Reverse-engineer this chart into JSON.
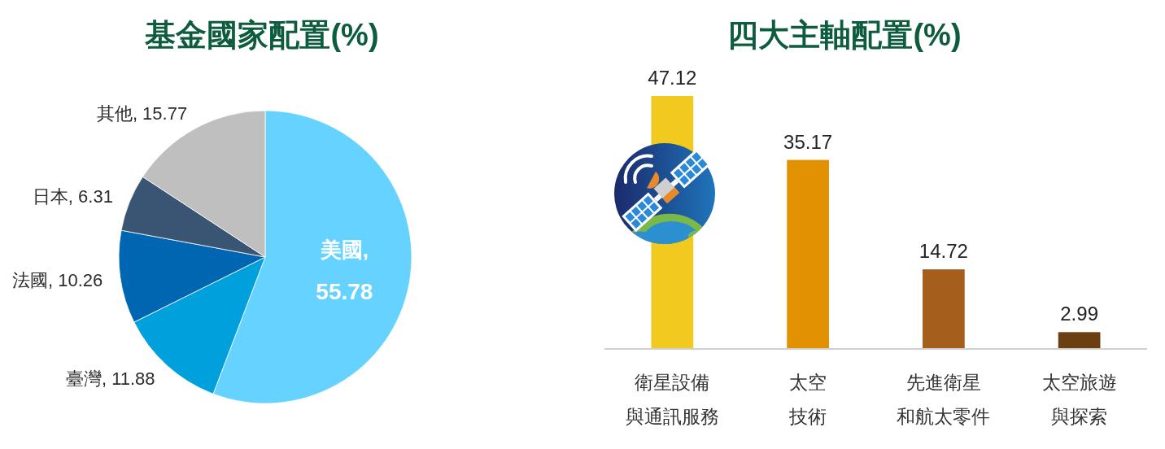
{
  "chart_data": [
    {
      "type": "pie",
      "title": "基金國家配置(%)",
      "values": [
        55.78,
        11.88,
        10.26,
        6.31,
        15.77
      ],
      "value_labels": [
        "美國, 55.78",
        "臺灣, 11.88",
        "法國, 10.26",
        "日本, 6.31",
        "其他, 15.77"
      ],
      "colors": [
        "#66d2ff",
        "#00a0dd",
        "#0066b2",
        "#3a5573",
        "#bfbfbf"
      ]
    },
    {
      "type": "bar",
      "title": "四大主軸配置(%)",
      "categories": [
        "衛星設備與通訊服務",
        "太空技術",
        "先進衛星和航太零件",
        "太空旅遊與探索"
      ],
      "values": [
        47.12,
        35.17,
        14.72,
        2.99
      ],
      "colors": [
        "#f2ca1f",
        "#e29100",
        "#a65e1c",
        "#6b3f12"
      ],
      "data_labels": true
    }
  ]
}
